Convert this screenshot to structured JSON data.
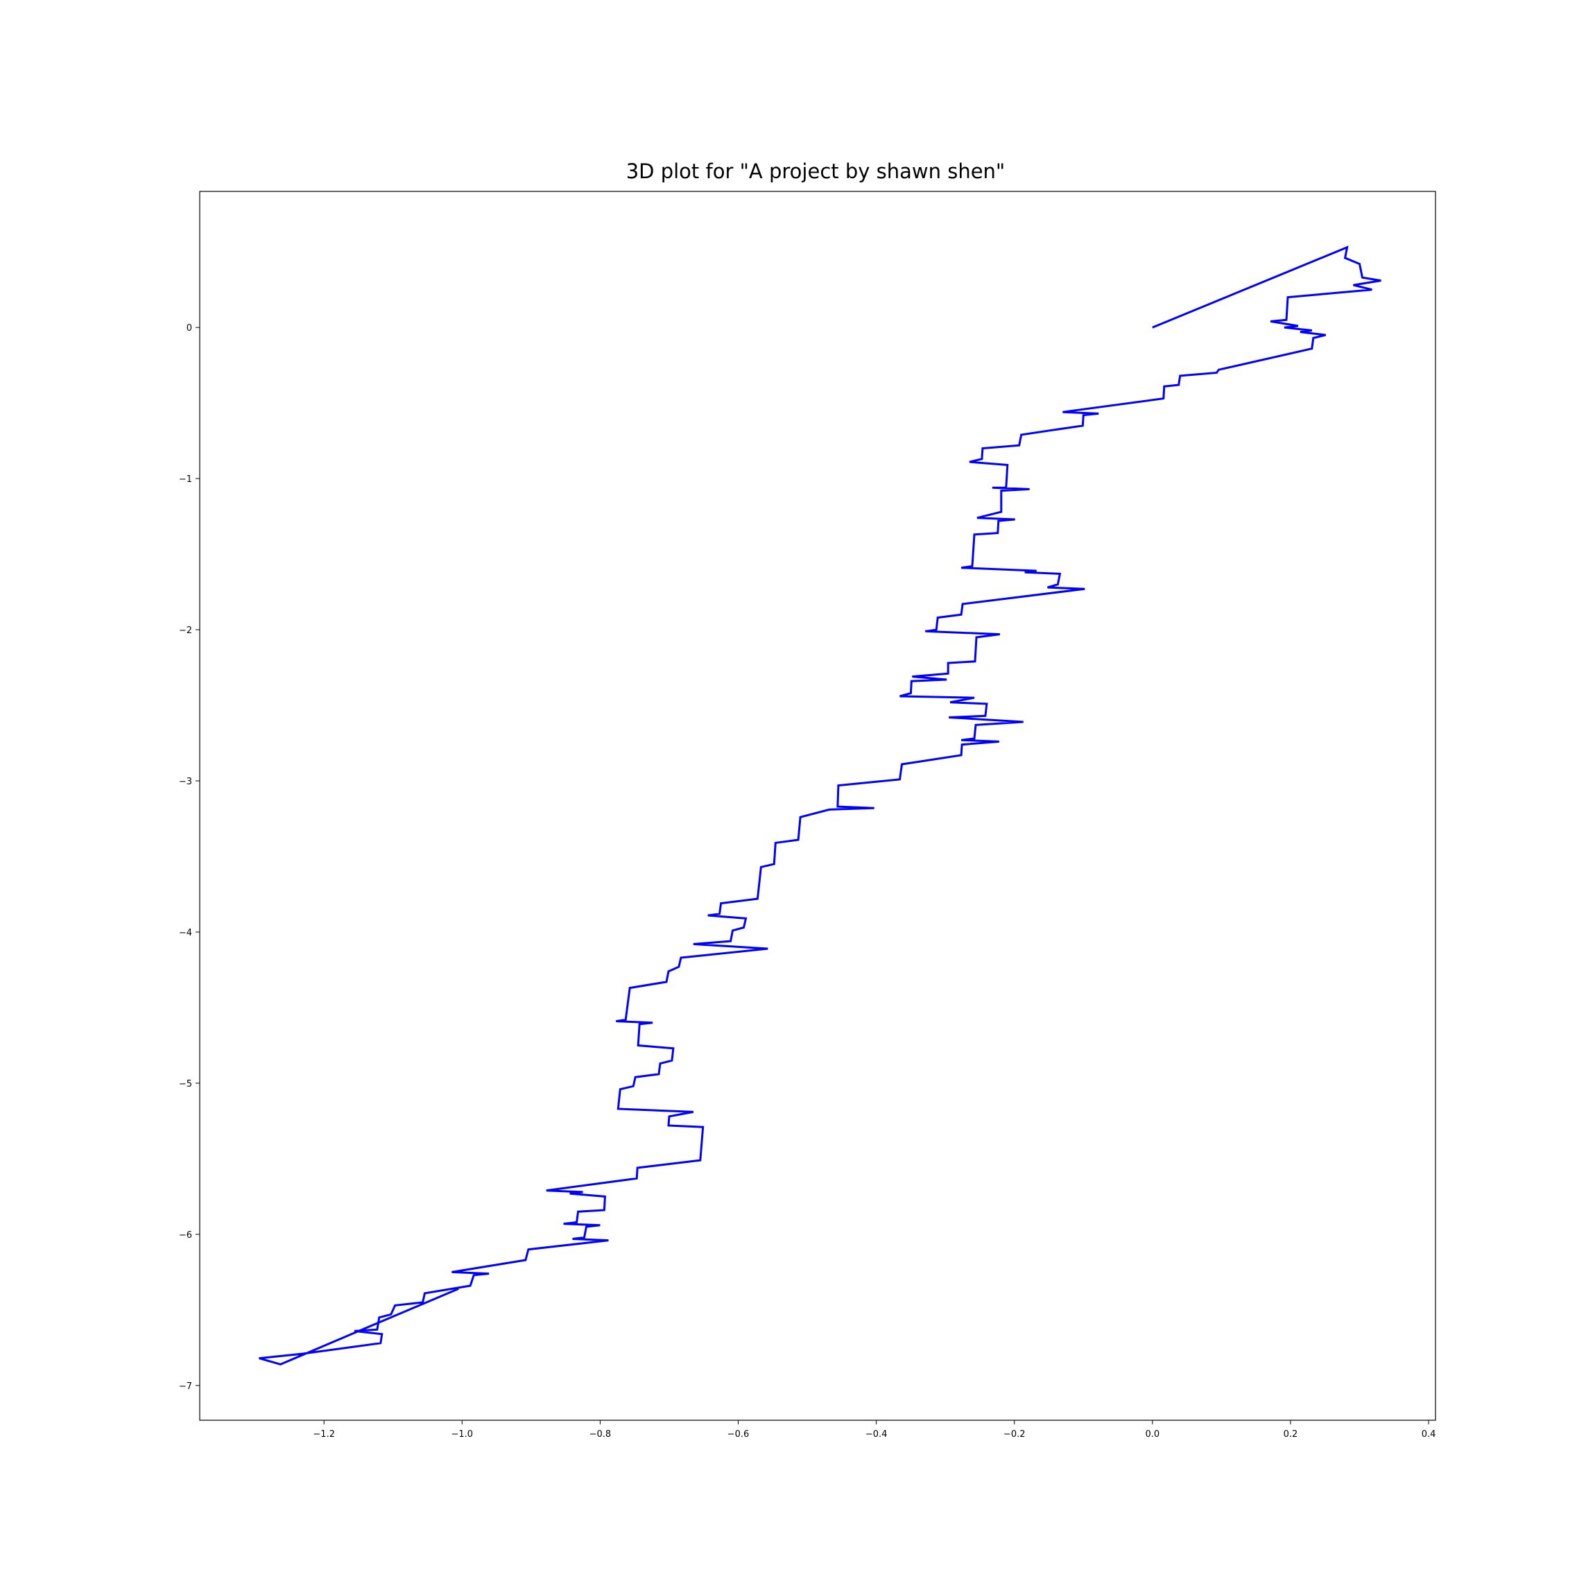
{
  "chart_data": {
    "type": "line",
    "title": "3D plot for \"A project by shawn shen\"",
    "xlabel": "",
    "ylabel": "",
    "xlim": [
      -1.38,
      0.41
    ],
    "ylim": [
      -7.23,
      0.9
    ],
    "x_ticks": [
      -1.2,
      -1.0,
      -0.8,
      -0.6,
      -0.4,
      -0.2,
      0.0,
      0.2,
      0.4
    ],
    "x_tick_labels": [
      "−1.2",
      "−1.0",
      "−0.8",
      "−0.6",
      "−0.4",
      "−0.2",
      "0.0",
      "0.2",
      "0.4"
    ],
    "y_ticks": [
      0,
      -1,
      -2,
      -3,
      -4,
      -5,
      -6,
      -7
    ],
    "y_tick_labels": [
      "0",
      "−1",
      "−2",
      "−3",
      "−4",
      "−5",
      "−6",
      "−7"
    ],
    "grid": false,
    "series": [
      {
        "color": "#0000ff",
        "points": [
          [
            0.0,
            0.0
          ],
          [
            0.282,
            0.53
          ],
          [
            0.279,
            0.46
          ],
          [
            0.3,
            0.42
          ],
          [
            0.304,
            0.33
          ],
          [
            0.331,
            0.31
          ],
          [
            0.291,
            0.28
          ],
          [
            0.318,
            0.25
          ],
          [
            0.196,
            0.2
          ],
          [
            0.194,
            0.05
          ],
          [
            0.171,
            0.04
          ],
          [
            0.211,
            0.01
          ],
          [
            0.191,
            0.0
          ],
          [
            0.231,
            -0.02
          ],
          [
            0.214,
            -0.03
          ],
          [
            0.251,
            -0.05
          ],
          [
            0.233,
            -0.07
          ],
          [
            0.231,
            -0.14
          ],
          [
            0.096,
            -0.28
          ],
          [
            0.093,
            -0.3
          ],
          [
            0.04,
            -0.32
          ],
          [
            0.038,
            -0.38
          ],
          [
            0.017,
            -0.39
          ],
          [
            0.016,
            -0.47
          ],
          [
            -0.13,
            -0.56
          ],
          [
            -0.078,
            -0.57
          ],
          [
            -0.1,
            -0.58
          ],
          [
            -0.101,
            -0.65
          ],
          [
            -0.19,
            -0.71
          ],
          [
            -0.193,
            -0.78
          ],
          [
            -0.246,
            -0.8
          ],
          [
            -0.247,
            -0.87
          ],
          [
            -0.265,
            -0.89
          ],
          [
            -0.21,
            -0.91
          ],
          [
            -0.212,
            -1.06
          ],
          [
            -0.232,
            -1.06
          ],
          [
            -0.178,
            -1.07
          ],
          [
            -0.219,
            -1.08
          ],
          [
            -0.219,
            -1.22
          ],
          [
            -0.254,
            -1.26
          ],
          [
            -0.199,
            -1.27
          ],
          [
            -0.223,
            -1.28
          ],
          [
            -0.224,
            -1.36
          ],
          [
            -0.258,
            -1.37
          ],
          [
            -0.261,
            -1.58
          ],
          [
            -0.277,
            -1.59
          ],
          [
            -0.168,
            -1.61
          ],
          [
            -0.185,
            -1.62
          ],
          [
            -0.134,
            -1.63
          ],
          [
            -0.137,
            -1.7
          ],
          [
            -0.152,
            -1.72
          ],
          [
            -0.098,
            -1.73
          ],
          [
            -0.275,
            -1.83
          ],
          [
            -0.277,
            -1.9
          ],
          [
            -0.311,
            -1.92
          ],
          [
            -0.313,
            -2.0
          ],
          [
            -0.329,
            -2.01
          ],
          [
            -0.221,
            -2.03
          ],
          [
            -0.255,
            -2.05
          ],
          [
            -0.257,
            -2.21
          ],
          [
            -0.296,
            -2.22
          ],
          [
            -0.296,
            -2.29
          ],
          [
            -0.348,
            -2.31
          ],
          [
            -0.298,
            -2.33
          ],
          [
            -0.349,
            -2.34
          ],
          [
            -0.35,
            -2.42
          ],
          [
            -0.366,
            -2.44
          ],
          [
            -0.258,
            -2.45
          ],
          [
            -0.293,
            -2.48
          ],
          [
            -0.24,
            -2.49
          ],
          [
            -0.242,
            -2.57
          ],
          [
            -0.295,
            -2.58
          ],
          [
            -0.187,
            -2.61
          ],
          [
            -0.256,
            -2.63
          ],
          [
            -0.258,
            -2.72
          ],
          [
            -0.277,
            -2.73
          ],
          [
            -0.222,
            -2.74
          ],
          [
            -0.276,
            -2.76
          ],
          [
            -0.277,
            -2.83
          ],
          [
            -0.363,
            -2.89
          ],
          [
            -0.366,
            -2.99
          ],
          [
            -0.455,
            -3.03
          ],
          [
            -0.456,
            -3.17
          ],
          [
            -0.403,
            -3.18
          ],
          [
            -0.468,
            -3.19
          ],
          [
            -0.51,
            -3.24
          ],
          [
            -0.513,
            -3.39
          ],
          [
            -0.546,
            -3.41
          ],
          [
            -0.548,
            -3.55
          ],
          [
            -0.567,
            -3.57
          ],
          [
            -0.572,
            -3.78
          ],
          [
            -0.625,
            -3.81
          ],
          [
            -0.627,
            -3.88
          ],
          [
            -0.644,
            -3.89
          ],
          [
            -0.589,
            -3.91
          ],
          [
            -0.592,
            -3.97
          ],
          [
            -0.608,
            -3.99
          ],
          [
            -0.611,
            -4.06
          ],
          [
            -0.665,
            -4.08
          ],
          [
            -0.557,
            -4.11
          ],
          [
            -0.683,
            -4.17
          ],
          [
            -0.686,
            -4.23
          ],
          [
            -0.701,
            -4.26
          ],
          [
            -0.704,
            -4.33
          ],
          [
            -0.757,
            -4.37
          ],
          [
            -0.763,
            -4.58
          ],
          [
            -0.777,
            -4.59
          ],
          [
            -0.724,
            -4.6
          ],
          [
            -0.743,
            -4.61
          ],
          [
            -0.745,
            -4.75
          ],
          [
            -0.694,
            -4.77
          ],
          [
            -0.696,
            -4.85
          ],
          [
            -0.713,
            -4.87
          ],
          [
            -0.715,
            -4.94
          ],
          [
            -0.749,
            -4.96
          ],
          [
            -0.752,
            -5.02
          ],
          [
            -0.771,
            -5.04
          ],
          [
            -0.774,
            -5.17
          ],
          [
            -0.665,
            -5.19
          ],
          [
            -0.7,
            -5.22
          ],
          [
            -0.701,
            -5.28
          ],
          [
            -0.651,
            -5.29
          ],
          [
            -0.655,
            -5.51
          ],
          [
            -0.746,
            -5.56
          ],
          [
            -0.747,
            -5.63
          ],
          [
            -0.878,
            -5.71
          ],
          [
            -0.825,
            -5.72
          ],
          [
            -0.844,
            -5.73
          ],
          [
            -0.793,
            -5.75
          ],
          [
            -0.794,
            -5.84
          ],
          [
            -0.832,
            -5.85
          ],
          [
            -0.834,
            -5.92
          ],
          [
            -0.853,
            -5.93
          ],
          [
            -0.8,
            -5.94
          ],
          [
            -0.82,
            -5.95
          ],
          [
            -0.823,
            -6.02
          ],
          [
            -0.84,
            -6.03
          ],
          [
            -0.788,
            -6.04
          ],
          [
            -0.904,
            -6.1
          ],
          [
            -0.908,
            -6.17
          ],
          [
            -1.015,
            -6.25
          ],
          [
            -0.961,
            -6.26
          ],
          [
            -0.983,
            -6.27
          ],
          [
            -0.988,
            -6.34
          ],
          [
            -1.054,
            -6.39
          ],
          [
            -1.057,
            -6.45
          ],
          [
            -1.097,
            -6.47
          ],
          [
            -1.103,
            -6.53
          ],
          [
            -1.12,
            -6.55
          ],
          [
            -1.123,
            -6.63
          ],
          [
            -1.156,
            -6.64
          ],
          [
            -1.116,
            -6.66
          ],
          [
            -1.118,
            -6.72
          ],
          [
            -1.231,
            -6.79
          ],
          [
            -1.294,
            -6.82
          ],
          [
            -1.263,
            -6.86
          ],
          [
            -1.155,
            -6.65
          ],
          [
            -1.005,
            -6.36
          ]
        ]
      }
    ]
  }
}
